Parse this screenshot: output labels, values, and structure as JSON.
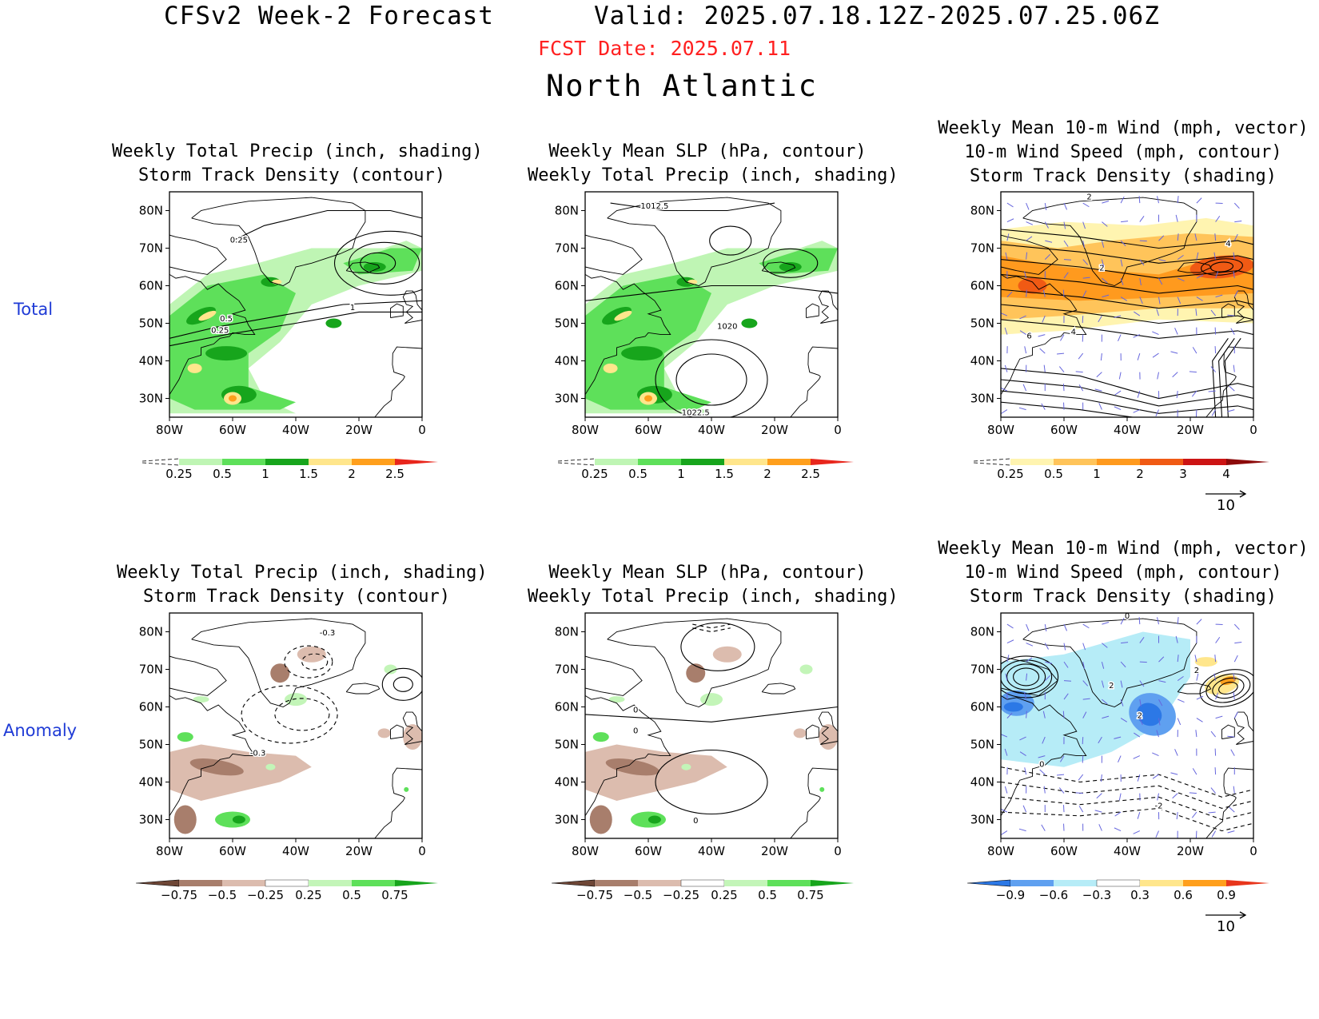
{
  "header": {
    "title": "CFSv2 Week-2 Forecast",
    "valid": "Valid: 2025.07.18.12Z-2025.07.25.06Z",
    "fcst_date": "FCST Date: 2025.07.11",
    "region": "North Atlantic"
  },
  "rows": [
    "Total",
    "Anomaly"
  ],
  "panel_titles": {
    "precip": [
      "Weekly Total Precip (inch, shading)",
      "Storm Track Density (contour)"
    ],
    "slp": [
      "Weekly Mean SLP (hPa, contour)",
      "Weekly Total Precip (inch, shading)"
    ],
    "wind": [
      "Weekly Mean 10-m Wind (mph, vector)",
      "10-m Wind Speed (mph, contour)",
      "Storm Track Density (shading)"
    ]
  },
  "axes": {
    "lat_labels": [
      "80N",
      "70N",
      "60N",
      "50N",
      "40N",
      "30N"
    ],
    "lon_labels": [
      "80W",
      "60W",
      "40W",
      "20W",
      "0"
    ]
  },
  "colorbars": {
    "precip_total": {
      "labels": [
        "0.25",
        "0.5",
        "1",
        "1.5",
        "2",
        "2.5"
      ],
      "colors": [
        "#ffffff",
        "#bff5b4",
        "#5ee05a",
        "#17a51c",
        "#ffe68c",
        "#ff9f1c",
        "#e8261c"
      ]
    },
    "wind_total": {
      "labels": [
        "0.25",
        "0.5",
        "1",
        "2",
        "3",
        "4"
      ],
      "colors": [
        "#ffffff",
        "#fff4b0",
        "#ffc45a",
        "#ff9a1e",
        "#f05a14",
        "#cc1414",
        "#8c0a0a"
      ]
    },
    "precip_anom": {
      "labels": [
        "−0.75",
        "−0.5",
        "−0.25",
        "0.25",
        "0.5",
        "0.75"
      ],
      "colors": [
        "#6e4636",
        "#a87e6c",
        "#dcbcae",
        "#ffffff",
        "#c3f5b8",
        "#5ee05a",
        "#17a51c"
      ]
    },
    "wind_anom": {
      "labels": [
        "−0.9",
        "−0.6",
        "−0.3",
        "0.3",
        "0.6",
        "0.9"
      ],
      "colors": [
        "#2c78e6",
        "#5fa0f0",
        "#b6ecf7",
        "#ffffff",
        "#ffe68c",
        "#ff9f1c",
        "#e8361c"
      ]
    }
  },
  "vector_scale": "10",
  "contour_labels": {
    "precip_total": [
      "0.25",
      "0.5",
      "0.25",
      "1"
    ],
    "slp_total": [
      "1012.5",
      "1020",
      "1022.5"
    ],
    "wind_total": [
      "2",
      "4",
      "2",
      "6",
      "4"
    ],
    "precip_anom": [
      "-0.3",
      "-0.3"
    ],
    "slp_anom": [
      "0",
      "0",
      "0"
    ],
    "wind_anom": [
      "0",
      "2",
      "2",
      "0",
      "2",
      "-2"
    ]
  },
  "colors": {
    "fcst_date": "#ff2020",
    "row_label": "#1f3bd6",
    "vector": "#6666dd"
  }
}
